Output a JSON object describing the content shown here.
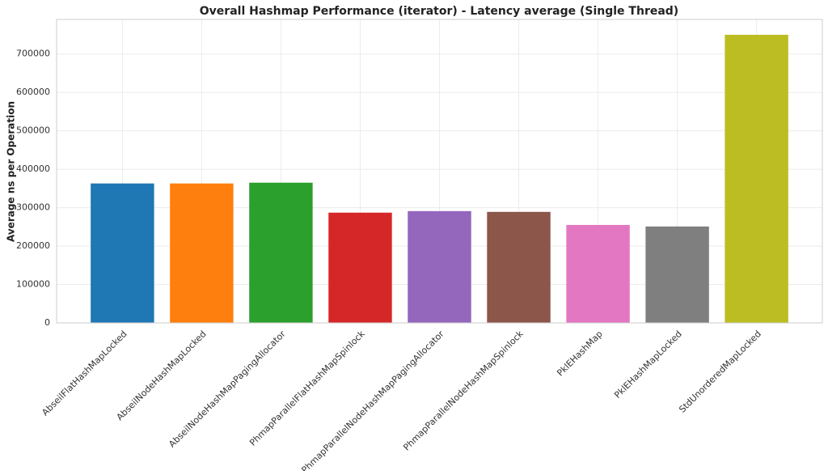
{
  "chart_data": {
    "type": "bar",
    "title": "Overall Hashmap Performance (iterator) - Latency average (Single Thread)",
    "y_label": "Average ns per Operation",
    "categories": [
      "AbseilFlatHashMapLocked",
      "AbseilNodeHashMapLocked",
      "AbseilNodeHashMapPagingAllocator",
      "PhmapParallelFlatHashMapSpinlock",
      "PhmapParallelNodeHashMapPagingAllocator",
      "PhmapParallelNodeHashMapSpinlock",
      "PklEHashMap",
      "PklEHashMapLocked",
      "StdUnorderedMapLocked"
    ],
    "values": [
      363000,
      363000,
      365000,
      287000,
      291000,
      289000,
      255000,
      251000,
      750000
    ],
    "colors": [
      "#1f77b4",
      "#ff7f0e",
      "#2ca02c",
      "#d62728",
      "#9467bd",
      "#8c564b",
      "#e377c2",
      "#7f7f7f",
      "#bcbd22"
    ],
    "ylim": [
      0,
      790000
    ],
    "yticks": [
      0,
      100000,
      200000,
      300000,
      400000,
      500000,
      600000,
      700000
    ],
    "grid": true
  }
}
